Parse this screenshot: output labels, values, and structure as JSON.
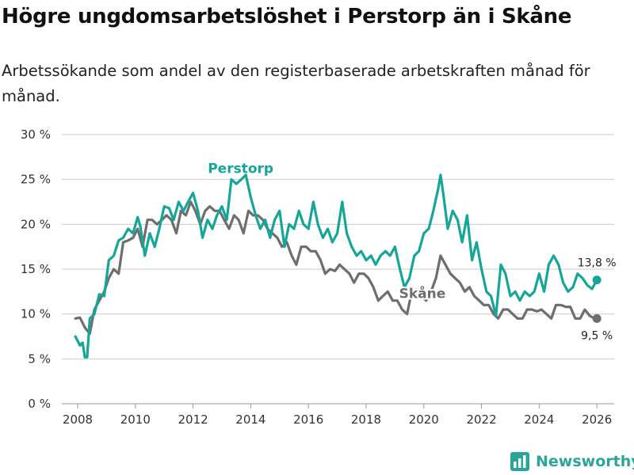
{
  "header": {
    "title": "Högre ungdomsarbetslöshet i Perstorp än i Skåne",
    "subtitle": "Arbetssökande som andel av den registerbaserade arbetskraften månad för månad."
  },
  "brand": {
    "name": "Newsworthy"
  },
  "colors": {
    "perstorp": "#16a699",
    "skane": "#6e6e70",
    "grid": "#cccccc",
    "axis": "#9a9a9a"
  },
  "chart_data": {
    "type": "line",
    "title": "Högre ungdomsarbetslöshet i Perstorp än i Skåne",
    "xlabel": "",
    "ylabel": "",
    "xlim": [
      2007.45,
      2026.6
    ],
    "ylim": [
      0,
      30
    ],
    "x_ticks": [
      2008,
      2010,
      2012,
      2014,
      2016,
      2018,
      2020,
      2022,
      2024,
      2026
    ],
    "x_tick_labels": [
      "2008",
      "2010",
      "2012",
      "2014",
      "2016",
      "2018",
      "2020",
      "2022",
      "2024",
      "2026"
    ],
    "y_ticks": [
      0,
      5,
      10,
      15,
      20,
      25,
      30
    ],
    "y_tick_labels": [
      "0 %",
      "5 %",
      "10 %",
      "15 %",
      "20 %",
      "25 %",
      "30 %"
    ],
    "series": [
      {
        "name": "Perstorp",
        "color": "#16a699",
        "x": [
          2007.92,
          2008.08,
          2008.17,
          2008.25,
          2008.33,
          2008.42,
          2008.58,
          2008.75,
          2008.92,
          2009.08,
          2009.25,
          2009.42,
          2009.58,
          2009.75,
          2009.92,
          2010.08,
          2010.17,
          2010.33,
          2010.5,
          2010.67,
          2010.83,
          2011.0,
          2011.17,
          2011.33,
          2011.5,
          2011.67,
          2011.83,
          2012.0,
          2012.17,
          2012.33,
          2012.5,
          2012.67,
          2012.83,
          2013.0,
          2013.17,
          2013.33,
          2013.5,
          2013.67,
          2013.83,
          2014.0,
          2014.17,
          2014.33,
          2014.5,
          2014.67,
          2014.83,
          2015.0,
          2015.17,
          2015.33,
          2015.5,
          2015.67,
          2015.83,
          2016.0,
          2016.17,
          2016.33,
          2016.5,
          2016.67,
          2016.83,
          2017.0,
          2017.17,
          2017.33,
          2017.5,
          2017.67,
          2017.83,
          2018.0,
          2018.17,
          2018.33,
          2018.5,
          2018.67,
          2018.83,
          2019.0,
          2019.17,
          2019.33,
          2019.5,
          2019.67,
          2019.83,
          2020.0,
          2020.17,
          2020.33,
          2020.5,
          2020.58,
          2020.67,
          2020.83,
          2021.0,
          2021.17,
          2021.33,
          2021.5,
          2021.67,
          2021.83,
          2022.0,
          2022.17,
          2022.33,
          2022.5,
          2022.67,
          2022.83,
          2023.0,
          2023.17,
          2023.33,
          2023.5,
          2023.67,
          2023.83,
          2024.0,
          2024.17,
          2024.33,
          2024.5,
          2024.67,
          2024.83,
          2025.0,
          2025.17,
          2025.33,
          2025.5,
          2025.67,
          2025.83,
          2026.0
        ],
        "values": [
          7.5,
          6.5,
          6.8,
          5.2,
          5.2,
          9.5,
          10.0,
          12.2,
          12.0,
          16.0,
          16.5,
          18.2,
          18.5,
          19.5,
          19.0,
          20.8,
          19.8,
          16.5,
          19.0,
          17.5,
          19.5,
          22.0,
          21.8,
          20.5,
          22.5,
          21.5,
          22.5,
          23.5,
          21.5,
          18.5,
          20.5,
          19.5,
          21.0,
          22.0,
          20.5,
          25.0,
          24.5,
          25.0,
          25.5,
          23.0,
          21.0,
          19.5,
          20.5,
          18.5,
          20.5,
          21.5,
          17.5,
          20.0,
          19.5,
          21.5,
          20.0,
          19.5,
          22.5,
          20.0,
          18.5,
          19.5,
          18.0,
          19.0,
          22.5,
          19.0,
          17.5,
          16.5,
          17.0,
          16.0,
          16.5,
          15.5,
          16.5,
          17.0,
          16.5,
          17.5,
          15.0,
          13.0,
          14.0,
          16.5,
          17.0,
          19.0,
          19.5,
          21.5,
          24.0,
          25.5,
          23.5,
          19.5,
          21.5,
          20.5,
          18.0,
          21.0,
          16.0,
          18.0,
          15.0,
          12.5,
          12.0,
          9.8,
          15.5,
          14.5,
          12.0,
          12.5,
          11.5,
          12.5,
          12.0,
          12.5,
          14.5,
          12.5,
          15.5,
          16.5,
          15.5,
          13.5,
          12.5,
          13.0,
          14.5,
          14.0,
          13.2,
          12.8,
          13.8
        ]
      },
      {
        "name": "Skåne",
        "color": "#6e6e70",
        "x": [
          2007.92,
          2008.08,
          2008.25,
          2008.42,
          2008.58,
          2008.75,
          2008.92,
          2009.08,
          2009.25,
          2009.42,
          2009.58,
          2009.75,
          2009.92,
          2010.08,
          2010.25,
          2010.42,
          2010.58,
          2010.75,
          2010.92,
          2011.08,
          2011.25,
          2011.42,
          2011.58,
          2011.75,
          2011.92,
          2012.08,
          2012.25,
          2012.42,
          2012.58,
          2012.75,
          2012.92,
          2013.08,
          2013.25,
          2013.42,
          2013.58,
          2013.75,
          2013.92,
          2014.08,
          2014.25,
          2014.42,
          2014.58,
          2014.75,
          2014.92,
          2015.08,
          2015.25,
          2015.42,
          2015.58,
          2015.75,
          2015.92,
          2016.08,
          2016.25,
          2016.42,
          2016.58,
          2016.75,
          2016.92,
          2017.08,
          2017.25,
          2017.42,
          2017.58,
          2017.75,
          2017.92,
          2018.08,
          2018.25,
          2018.42,
          2018.58,
          2018.75,
          2018.92,
          2019.08,
          2019.25,
          2019.42,
          2019.58,
          2019.75,
          2019.92,
          2020.08,
          2020.25,
          2020.42,
          2020.58,
          2020.75,
          2020.92,
          2021.08,
          2021.25,
          2021.42,
          2021.58,
          2021.75,
          2021.92,
          2022.08,
          2022.25,
          2022.42,
          2022.58,
          2022.75,
          2022.92,
          2023.08,
          2023.25,
          2023.42,
          2023.58,
          2023.75,
          2023.92,
          2024.08,
          2024.25,
          2024.42,
          2024.58,
          2024.75,
          2024.92,
          2025.08,
          2025.25,
          2025.42,
          2025.58,
          2025.75,
          2025.92,
          2026.0
        ],
        "values": [
          9.5,
          9.6,
          8.5,
          7.8,
          10.5,
          11.5,
          12.5,
          14.0,
          15.0,
          14.5,
          18.0,
          18.2,
          18.5,
          19.5,
          17.5,
          20.5,
          20.5,
          20.0,
          20.5,
          21.0,
          20.5,
          19.0,
          21.5,
          21.0,
          22.5,
          21.5,
          20.0,
          21.5,
          22.0,
          21.5,
          21.5,
          20.5,
          19.5,
          21.0,
          20.5,
          19.0,
          21.5,
          21.0,
          21.0,
          20.5,
          19.5,
          19.0,
          18.5,
          17.5,
          18.0,
          16.5,
          15.5,
          17.5,
          17.5,
          17.0,
          17.0,
          16.0,
          14.5,
          15.0,
          14.8,
          15.5,
          15.0,
          14.5,
          13.5,
          14.5,
          14.5,
          14.0,
          13.0,
          11.5,
          12.0,
          12.5,
          11.5,
          11.5,
          10.5,
          10.0,
          12.5,
          12.5,
          12.0,
          11.5,
          12.5,
          14.0,
          16.5,
          15.5,
          14.5,
          14.0,
          13.5,
          12.5,
          13.0,
          12.0,
          11.5,
          11.0,
          11.0,
          10.0,
          9.5,
          10.5,
          10.5,
          10.0,
          9.5,
          9.5,
          10.5,
          10.5,
          10.3,
          10.5,
          10.0,
          9.5,
          11.0,
          11.0,
          10.8,
          10.8,
          9.5,
          9.5,
          10.5,
          9.8,
          9.5,
          9.5
        ]
      }
    ],
    "annotations": {
      "series_labels": [
        "Perstorp",
        "Skåne"
      ],
      "end_labels": [
        "13,8 %",
        "9,5 %"
      ]
    }
  }
}
